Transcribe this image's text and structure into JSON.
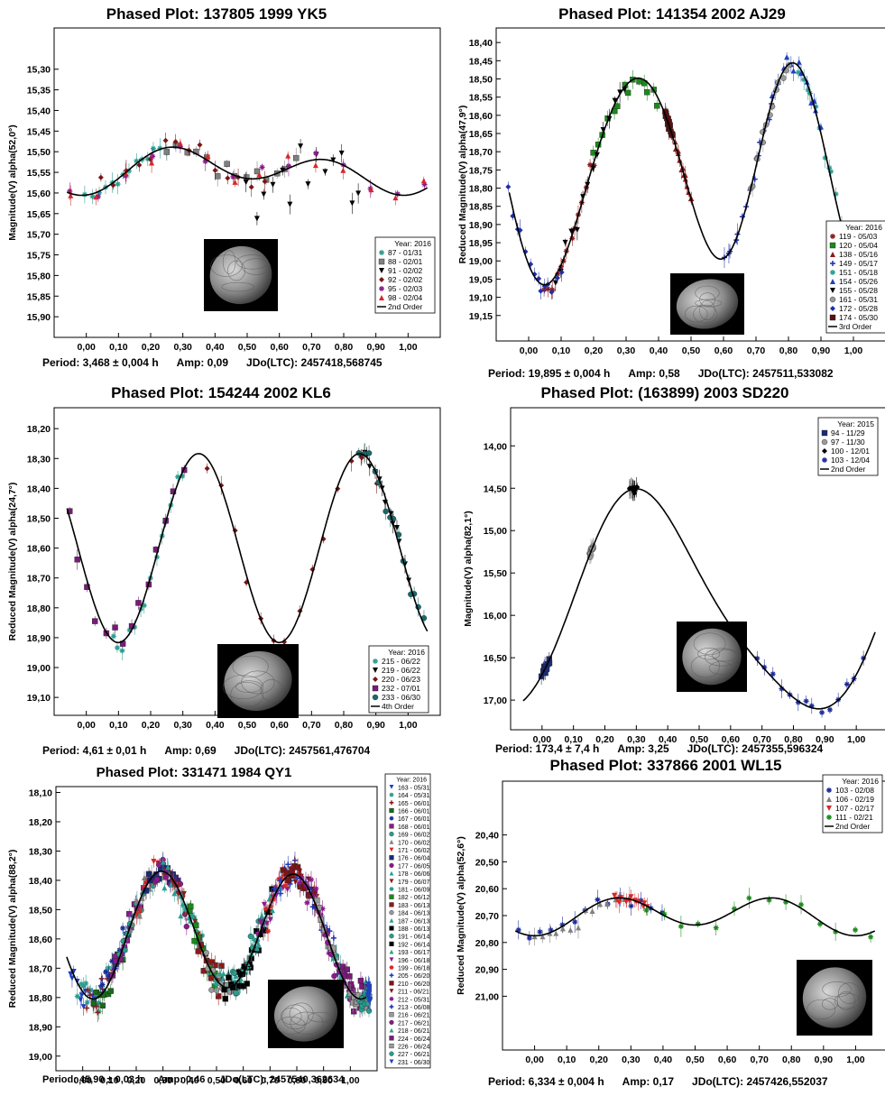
{
  "chart_data": [
    {
      "type": "scatter",
      "title": "Phased Plot: 137805 1999 YK5",
      "ylabel": "Magnitude(V) alpha(52,0°)",
      "xlabel": "",
      "xlim": [
        -0.1,
        1.1
      ],
      "ylim": [
        15.95,
        15.2
      ],
      "x_ticks": [
        "0,00",
        "0,10",
        "0,20",
        "0,30",
        "0,40",
        "0,50",
        "0,60",
        "0,70",
        "0,80",
        "0,90",
        "1,00"
      ],
      "y_ticks": [
        "15,30",
        "15,35",
        "15,40",
        "15,45",
        "15,50",
        "15,55",
        "15,60",
        "15,65",
        "15,70",
        "15,75",
        "15,80",
        "15,85",
        "15,90"
      ],
      "y_tick_values": [
        15.3,
        15.35,
        15.4,
        15.45,
        15.5,
        15.55,
        15.6,
        15.65,
        15.7,
        15.75,
        15.8,
        15.85,
        15.9
      ],
      "legend_title": "Year: 2016",
      "legend_position": "bottom-right",
      "fit_label": "2nd Order",
      "fit": {
        "mean": 15.545,
        "terms": [
          [
            0.02,
            -0.015
          ],
          [
            0.04,
            0.0
          ]
        ]
      },
      "series": [
        {
          "name": "87 - 01/31",
          "marker": "asterisk",
          "color": "#2a9d8f",
          "from": 0.0,
          "to": 0.25,
          "scatter": 0.03
        },
        {
          "name": "88 - 02/01",
          "marker": "square",
          "color": "#7f7f7f",
          "from": 0.25,
          "to": 0.65,
          "scatter": 0.03
        },
        {
          "name": "91 - 02/02",
          "marker": "triangle-down",
          "color": "#000000",
          "from": 0.5,
          "to": 0.85,
          "scatter": 0.12
        },
        {
          "name": "92 - 02/02",
          "marker": "diamond",
          "color": "#7b1616",
          "from": 0.05,
          "to": 0.55,
          "scatter": 0.04
        },
        {
          "name": "95 - 02/03",
          "marker": "asterisk",
          "color": "#8b1a8b",
          "from": -0.05,
          "to": 1.05,
          "scatter": 0.04
        },
        {
          "name": "98 - 02/04",
          "marker": "triangle-up",
          "color": "#d62728",
          "from": -0.05,
          "to": 1.05,
          "scatter": 0.04
        }
      ],
      "footer": {
        "period": "Period: 3,468 ± 0,004 h",
        "amp": "Amp: 0,09",
        "jdo": "JDo(LTC): 2457418,568745"
      }
    },
    {
      "type": "scatter",
      "title": "Phased Plot: 141354 2002 AJ29",
      "ylabel": "Reduced Magnitude(V) alpha(47,9°)",
      "xlabel": "",
      "xlim": [
        -0.1,
        1.1
      ],
      "ylim": [
        19.22,
        18.36
      ],
      "x_ticks": [
        "0,00",
        "0,10",
        "0,20",
        "0,30",
        "0,40",
        "0,50",
        "0,60",
        "0,70",
        "0,80",
        "0,90",
        "1,00"
      ],
      "y_ticks": [
        "18,40",
        "18,45",
        "18,50",
        "18,55",
        "18,60",
        "18,65",
        "18,70",
        "18,75",
        "18,80",
        "18,85",
        "18,90",
        "18,95",
        "19,00",
        "19,05",
        "19,10",
        "19,15"
      ],
      "y_tick_values": [
        18.4,
        18.45,
        18.5,
        18.55,
        18.6,
        18.65,
        18.7,
        18.75,
        18.8,
        18.85,
        18.9,
        18.95,
        19.0,
        19.05,
        19.1,
        19.15
      ],
      "legend_title": "Year: 2016",
      "legend_position": "right",
      "fit_label": "3rd Order",
      "fit": {
        "mean": 18.75,
        "terms": [
          [
            0.05,
            0.0
          ],
          [
            0.17,
            0.21
          ],
          [
            0.04,
            -0.02
          ]
        ]
      },
      "series": [
        {
          "name": "119 - 05/03",
          "marker": "asterisk",
          "color": "#8b1a1a",
          "from": 0.05,
          "to": 0.2,
          "scatter": 0.04
        },
        {
          "name": "120 - 05/04",
          "marker": "square",
          "color": "#1a8a1a",
          "from": 0.2,
          "to": 0.4,
          "scatter": 0.04
        },
        {
          "name": "138 - 05/16",
          "marker": "triangle-up",
          "color": "#8b1a1a",
          "from": 0.45,
          "to": 0.5,
          "scatter": 0.02
        },
        {
          "name": "149 - 05/17",
          "marker": "plus",
          "color": "#1f2fa8",
          "from": 0.6,
          "to": 0.75,
          "scatter": 0.04
        },
        {
          "name": "151 - 05/18",
          "marker": "asterisk",
          "color": "#2a9d8f",
          "from": 0.83,
          "to": 1.0,
          "scatter": 0.04
        },
        {
          "name": "154 - 05/26",
          "marker": "triangle-up",
          "color": "#1f3fbf",
          "from": 0.75,
          "to": 0.9,
          "scatter": 0.04
        },
        {
          "name": "155 - 05/28",
          "marker": "triangle-down",
          "color": "#000000",
          "from": 0.08,
          "to": 0.3,
          "scatter": 0.04
        },
        {
          "name": "161 - 05/31",
          "marker": "circle",
          "color": "#9a9a9a",
          "from": 0.68,
          "to": 0.8,
          "scatter": 0.03
        },
        {
          "name": "172 - 05/28",
          "marker": "diamond",
          "color": "#1f2fa8",
          "from": -0.06,
          "to": 0.1,
          "scatter": 0.04
        },
        {
          "name": "174 - 05/30",
          "marker": "square",
          "color": "#5a1010",
          "from": 0.42,
          "to": 0.44,
          "scatter": 0.02
        }
      ],
      "footer": {
        "period": "Period: 19,895 ± 0,004 h",
        "amp": "Amp: 0,58",
        "jdo": "JDo(LTC): 2457511,533082"
      }
    },
    {
      "type": "scatter",
      "title": "Phased Plot: 154244 2002 KL6",
      "ylabel": "Reduced Magnitude(V) alpha(24,7°)",
      "xlabel": "",
      "xlim": [
        -0.1,
        1.1
      ],
      "ylim": [
        19.16,
        18.13
      ],
      "x_ticks": [
        "0,00",
        "0,10",
        "0,20",
        "0,30",
        "0,40",
        "0,50",
        "0,60",
        "0,70",
        "0,80",
        "0,90",
        "1,00"
      ],
      "y_ticks": [
        "18,20",
        "18,30",
        "18,40",
        "18,50",
        "18,60",
        "18,70",
        "18,80",
        "18,90",
        "19,00",
        "19,10"
      ],
      "y_tick_values": [
        18.2,
        18.3,
        18.4,
        18.5,
        18.6,
        18.7,
        18.8,
        18.9,
        19.0,
        19.1
      ],
      "legend_title": "Year: 2016",
      "legend_position": "bottom-right",
      "fit_label": "4th Order",
      "fit": {
        "mean": 18.6,
        "terms": [
          [
            0.0,
            0.0
          ],
          [
            0.1,
            0.3
          ],
          [
            0.0,
            0.0
          ],
          [
            0.0,
            0.0
          ]
        ]
      },
      "series": [
        {
          "name": "215 - 06/22",
          "marker": "asterisk",
          "color": "#2a9d8f",
          "from": 0.08,
          "to": 0.3,
          "scatter": 0.05
        },
        {
          "name": "219 - 06/22",
          "marker": "triangle-down",
          "color": "#000000",
          "from": 0.85,
          "to": 1.0,
          "scatter": 0.05
        },
        {
          "name": "220 - 06/23",
          "marker": "diamond",
          "color": "#7b1616",
          "from": 0.38,
          "to": 0.9,
          "scatter": 0.04
        },
        {
          "name": "232 - 07/01",
          "marker": "square",
          "color": "#7a1a7a",
          "from": -0.05,
          "to": 0.3,
          "scatter": 0.06
        },
        {
          "name": "233 - 06/30",
          "marker": "circle",
          "color": "#1a6a6a",
          "from": 0.85,
          "to": 1.05,
          "scatter": 0.05
        }
      ],
      "footer": {
        "period": "Period: 4,61 ± 0,01 h",
        "amp": "Amp: 0,69",
        "jdo": "JDo(LTC): 2457561,476704"
      }
    },
    {
      "type": "scatter",
      "title": "Phased Plot: (163899) 2003 SD220",
      "ylabel": "Magnitude(V) alpha(82,1°)",
      "xlabel": "",
      "xlim": [
        -0.1,
        1.1
      ],
      "ylim": [
        17.35,
        13.55
      ],
      "x_ticks": [
        "0,00",
        "0,10",
        "0,20",
        "0,30",
        "0,40",
        "0,50",
        "0,60",
        "0,70",
        "0,80",
        "0,90",
        "1,00"
      ],
      "y_ticks": [
        "14,00",
        "14,50",
        "15,00",
        "15,50",
        "16,00",
        "16,50",
        "17,00"
      ],
      "y_tick_values": [
        14.0,
        14.5,
        15.0,
        15.5,
        16.0,
        16.5,
        17.0
      ],
      "legend_title": "Year: 2015",
      "legend_position": "top-right",
      "fit_label": "2nd Order",
      "fit": {
        "mean": 15.9,
        "terms": [
          [
            0.6,
            -1.1
          ],
          [
            0.2,
            0.0
          ]
        ]
      },
      "series": [
        {
          "name": "94 - 11/29",
          "marker": "square",
          "color": "#1a2a7a",
          "from": 0.0,
          "to": 0.02,
          "scatter": 0.1
        },
        {
          "name": "97 - 11/30",
          "marker": "circle",
          "color": "#9a9a9a",
          "from": 0.15,
          "to": 0.16,
          "scatter": 0.1
        },
        {
          "name": "100 - 12/01",
          "marker": "diamond",
          "color": "#000000",
          "from": 0.28,
          "to": 0.3,
          "scatter": 0.06
        },
        {
          "name": "103 - 12/04",
          "marker": "asterisk",
          "color": "#1a2a9a",
          "from": 0.68,
          "to": 1.02,
          "scatter": 0.08
        }
      ],
      "footer": {
        "period": "Period: 173,4 ± 7,4 h",
        "amp": "Amp: 3,25",
        "jdo": "JDo(LTC): 2457355,596324"
      }
    },
    {
      "type": "scatter",
      "title": "Phased Plot: 331471 1984 QY1",
      "ylabel": "Reduced Magnitude(V) alpha(88,2°)",
      "xlabel": "",
      "xlim": [
        -0.1,
        1.1
      ],
      "ylim": [
        19.05,
        18.08
      ],
      "x_ticks": [
        "0,00",
        "0,10",
        "0,20",
        "0,30",
        "0,40",
        "0,50",
        "0,60",
        "0,70",
        "0,80",
        "0,90",
        "1,00"
      ],
      "y_ticks": [
        "18,10",
        "18,20",
        "18,30",
        "18,40",
        "18,50",
        "18,60",
        "18,70",
        "18,80",
        "18,90",
        "19,00"
      ],
      "y_tick_values": [
        18.1,
        18.2,
        18.3,
        18.4,
        18.5,
        18.6,
        18.7,
        18.8,
        18.9,
        19.0
      ],
      "legend_title": "Year: 2016",
      "legend_position": "outside-right",
      "fit_label": "",
      "fit": {
        "mean": 18.58,
        "terms": [
          [
            0.02,
            0.0
          ],
          [
            0.18,
            0.1
          ]
        ]
      },
      "series": [
        {
          "name": "163 - 05/31",
          "marker": "triangle-down",
          "color": "#1f3fbf"
        },
        {
          "name": "164 - 05/31",
          "marker": "asterisk",
          "color": "#2a9d8f"
        },
        {
          "name": "165 - 06/01",
          "marker": "plus",
          "color": "#8b1a1a"
        },
        {
          "name": "166 - 06/01",
          "marker": "square",
          "color": "#1a6a1a"
        },
        {
          "name": "167 - 06/01",
          "marker": "asterisk",
          "color": "#1a2a9a"
        },
        {
          "name": "168 - 06/01",
          "marker": "square",
          "color": "#8b1a8b"
        },
        {
          "name": "169 - 06/02",
          "marker": "circle",
          "color": "#2a9d8f"
        },
        {
          "name": "170 - 06/02",
          "marker": "triangle-up",
          "color": "#808080"
        },
        {
          "name": "171 - 06/02",
          "marker": "triangle-down",
          "color": "#d62728"
        },
        {
          "name": "176 - 06/04",
          "marker": "square",
          "color": "#1a2a7a"
        },
        {
          "name": "177 - 06/05",
          "marker": "circle",
          "color": "#8b1a8b"
        },
        {
          "name": "178 - 06/06",
          "marker": "triangle-up",
          "color": "#2a9d8f"
        },
        {
          "name": "179 - 06/07",
          "marker": "triangle-down",
          "color": "#8b1a1a"
        },
        {
          "name": "181 - 06/09",
          "marker": "asterisk",
          "color": "#2a9d8f"
        },
        {
          "name": "182 - 06/12",
          "marker": "square",
          "color": "#1a8a1a"
        },
        {
          "name": "183 - 06/13",
          "marker": "square",
          "color": "#8b1a1a"
        },
        {
          "name": "184 - 06/13",
          "marker": "circle",
          "color": "#9a9a9a"
        },
        {
          "name": "187 - 06/13",
          "marker": "triangle-up",
          "color": "#2a9d8f"
        },
        {
          "name": "188 - 06/13",
          "marker": "square",
          "color": "#000000"
        },
        {
          "name": "191 - 06/14",
          "marker": "circle",
          "color": "#2a9d8f"
        },
        {
          "name": "192 - 06/14",
          "marker": "square",
          "color": "#000000"
        },
        {
          "name": "193 - 06/17",
          "marker": "triangle-up",
          "color": "#2a9d8f"
        },
        {
          "name": "196 - 06/18",
          "marker": "triangle-down",
          "color": "#8b1a8b"
        },
        {
          "name": "199 - 06/18",
          "marker": "asterisk",
          "color": "#d62728"
        },
        {
          "name": "205 - 06/20",
          "marker": "plus",
          "color": "#1f3fbf"
        },
        {
          "name": "210 - 06/20",
          "marker": "square",
          "color": "#7b1616"
        },
        {
          "name": "211 - 06/21",
          "marker": "triangle-down",
          "color": "#7b1616"
        },
        {
          "name": "212 - 05/31",
          "marker": "asterisk",
          "color": "#8b1a8b"
        },
        {
          "name": "213 - 06/08",
          "marker": "plus",
          "color": "#1f2fa8"
        },
        {
          "name": "216 - 06/21",
          "marker": "square",
          "color": "#9a9a9a"
        },
        {
          "name": "217 - 06/21",
          "marker": "circle",
          "color": "#8b1a8b"
        },
        {
          "name": "218 - 06/21",
          "marker": "triangle-up",
          "color": "#2a9d8f"
        },
        {
          "name": "224 - 06/24",
          "marker": "square",
          "color": "#7a1a7a"
        },
        {
          "name": "226 - 06/24",
          "marker": "square",
          "color": "#9a9a9a"
        },
        {
          "name": "227 - 06/21",
          "marker": "circle",
          "color": "#2a9d8f"
        },
        {
          "name": "231 - 06/30",
          "marker": "triangle-down",
          "color": "#1f3fbf"
        }
      ],
      "footer": {
        "period": "Period: 45,90 ± 0,03 h",
        "amp": "Amp: 0,46",
        "jdo": "JDo(LTC): 2457540,362634"
      }
    },
    {
      "type": "scatter",
      "title": "Phased Plot: 337866 2001 WL15",
      "ylabel": "Reduced Magnitude(V) alpha(52,6°)",
      "xlabel": "",
      "xlim": [
        -0.1,
        1.1
      ],
      "ylim": [
        21.2,
        20.2
      ],
      "x_ticks": [
        "0,00",
        "0,10",
        "0,20",
        "0,30",
        "0,40",
        "0,50",
        "0,60",
        "0,70",
        "0,80",
        "0,90",
        "1,00"
      ],
      "y_ticks": [
        "20,40",
        "20,50",
        "20,60",
        "20,70",
        "20,80",
        "20,90",
        "21,00"
      ],
      "y_tick_values": [
        20.4,
        20.5,
        20.6,
        20.7,
        20.8,
        20.9,
        21.0
      ],
      "legend_title": "Year: 2016",
      "legend_position": "top-right",
      "fit_label": "2nd Order",
      "fit": {
        "mean": 20.695,
        "terms": [
          [
            0.02,
            0.0
          ],
          [
            0.06,
            0.0
          ]
        ]
      },
      "series": [
        {
          "name": "103 - 02/08",
          "marker": "asterisk",
          "color": "#1a2a9a",
          "from": -0.05,
          "to": 0.4,
          "scatter": 0.04
        },
        {
          "name": "106 - 02/19",
          "marker": "triangle-up",
          "color": "#808080",
          "from": 0.0,
          "to": 0.3,
          "scatter": 0.05
        },
        {
          "name": "107 - 02/17",
          "marker": "triangle-down",
          "color": "#d62728",
          "from": 0.25,
          "to": 0.35,
          "scatter": 0.02
        },
        {
          "name": "111 - 02/21",
          "marker": "asterisk",
          "color": "#1a8a1a",
          "from": 0.35,
          "to": 1.05,
          "scatter": 0.04
        }
      ],
      "footer": {
        "period": "Period: 6,334 ± 0,004 h",
        "amp": "Amp: 0,17",
        "jdo": "JDo(LTC): 2457426,552037"
      }
    }
  ]
}
